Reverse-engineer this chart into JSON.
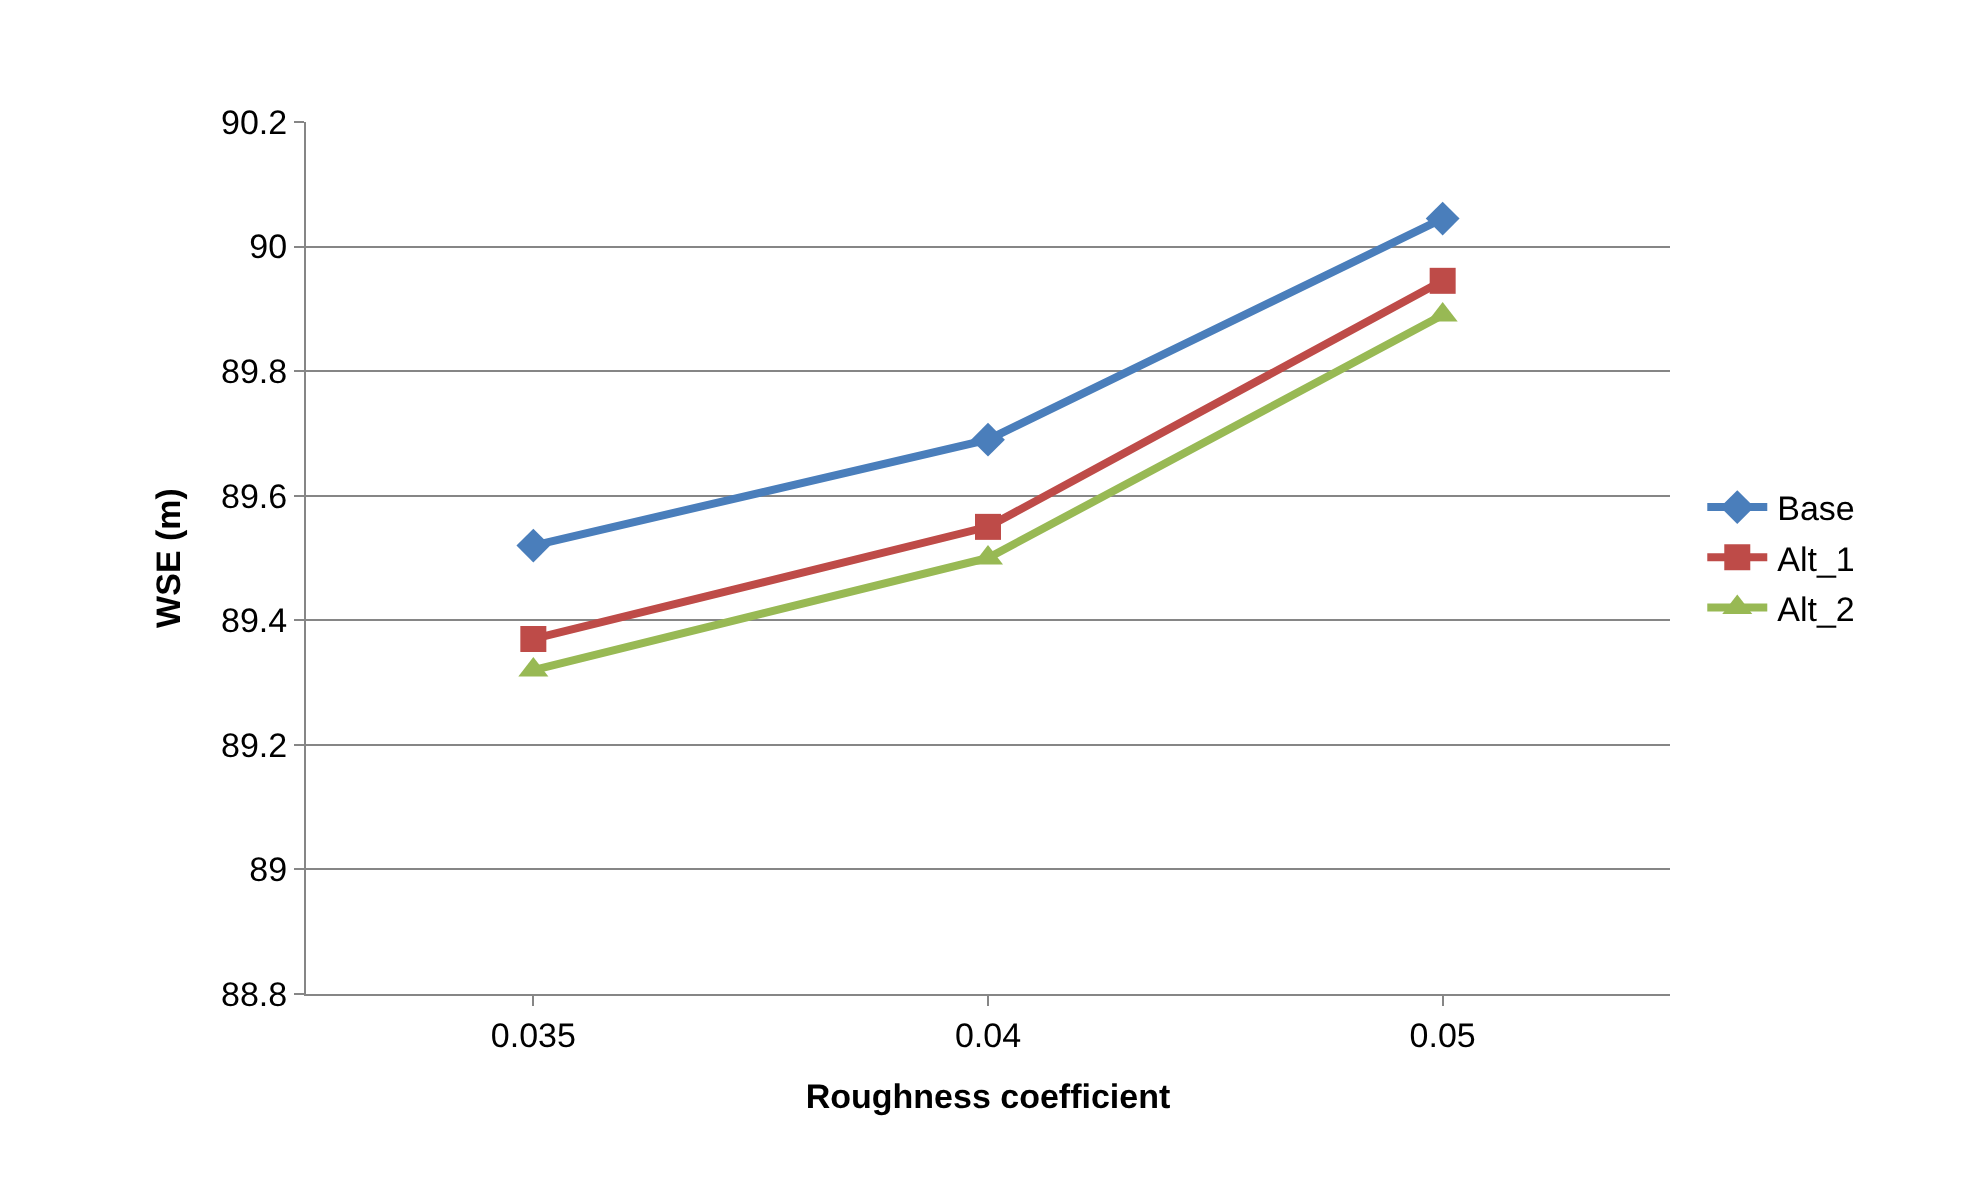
{
  "chart_data": {
    "type": "line",
    "xlabel": "Roughness coefficient",
    "ylabel": "WSE (m)",
    "categories": [
      "0.035",
      "0.04",
      "0.05"
    ],
    "series": [
      {
        "name": "Base",
        "color": "#4a7ebb",
        "marker": "diamond",
        "values": [
          89.52,
          89.69,
          90.045
        ]
      },
      {
        "name": "Alt_1",
        "color": "#be4b48",
        "marker": "square",
        "values": [
          89.37,
          89.55,
          89.945
        ]
      },
      {
        "name": "Alt_2",
        "color": "#98b954",
        "marker": "triangle",
        "values": [
          89.32,
          89.5,
          89.89
        ]
      }
    ],
    "ylim": [
      88.8,
      90.2
    ],
    "yticks": [
      88.8,
      89,
      89.2,
      89.4,
      89.6,
      89.8,
      90,
      90.2
    ],
    "grid": "y",
    "legend": "right",
    "line_style": "solid"
  }
}
